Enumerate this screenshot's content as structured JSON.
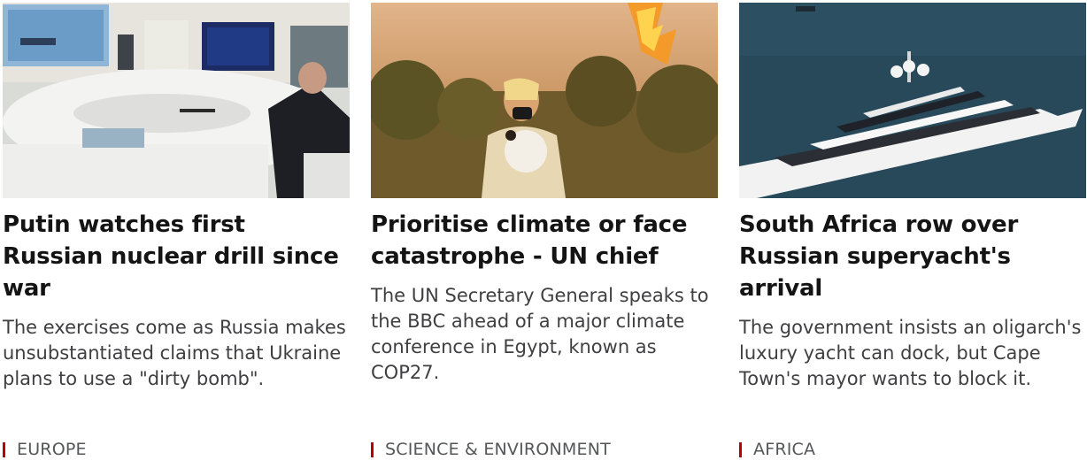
{
  "accent_color": "#b80000",
  "stories": [
    {
      "image": "putin-nuclear-drill-photo",
      "headline": "Putin watches first Russian nuclear drill since war",
      "summary": "The exercises come as Russia makes unsubstantiated claims that Ukraine plans to use a \"dirty bomb\".",
      "section": "EUROPE"
    },
    {
      "image": "wildfire-woman-dog-photo",
      "headline": "Prioritise climate or face catastrophe - UN chief",
      "summary": "The UN Secretary General speaks to the BBC ahead of a major climate conference in Egypt, known as COP27.",
      "section": "SCIENCE & ENVIRONMENT"
    },
    {
      "image": "superyacht-photo",
      "headline": "South Africa row over Russian superyacht's arrival",
      "summary": "The government insists an oligarch's luxury yacht can dock, but Cape Town's mayor wants to block it.",
      "section": "AFRICA"
    }
  ]
}
